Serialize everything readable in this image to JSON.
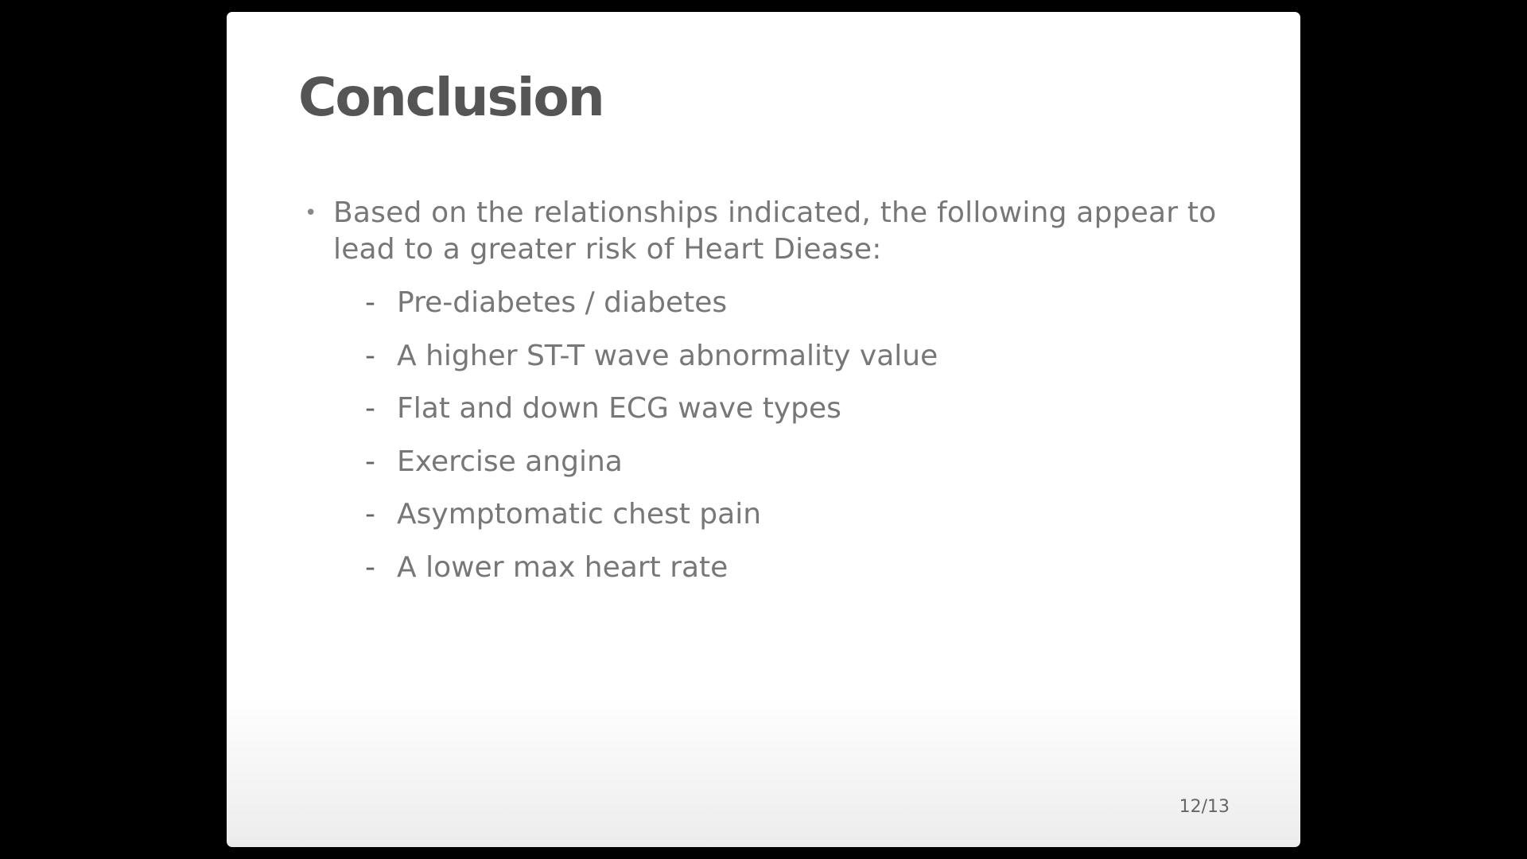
{
  "slide": {
    "title": "Conclusion",
    "bullet": {
      "marker": "•",
      "text": "Based on the relationships indicated, the following appear to lead to a greater risk of Heart Diease:"
    },
    "subitems": [
      {
        "marker": "-",
        "text": "Pre-diabetes / diabetes"
      },
      {
        "marker": "-",
        "text": "A higher ST-T wave abnormality value"
      },
      {
        "marker": "-",
        "text": "Flat and down ECG wave types"
      },
      {
        "marker": "-",
        "text": "Exercise angina"
      },
      {
        "marker": "-",
        "text": "Asymptomatic chest pain"
      },
      {
        "marker": "-",
        "text": "A lower max heart rate"
      }
    ],
    "page_number": "12/13"
  }
}
